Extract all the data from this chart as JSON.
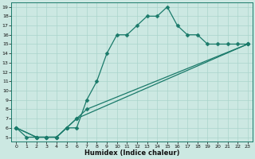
{
  "background_color": "#cce8e2",
  "grid_color": "#aad4cc",
  "line_color": "#1a7a6a",
  "xlim": [
    -0.5,
    23.5
  ],
  "ylim": [
    4.5,
    19.5
  ],
  "xticks": [
    0,
    1,
    2,
    3,
    4,
    5,
    6,
    7,
    8,
    9,
    10,
    11,
    12,
    13,
    14,
    15,
    16,
    17,
    18,
    19,
    20,
    21,
    22,
    23
  ],
  "yticks": [
    5,
    6,
    7,
    8,
    9,
    10,
    11,
    12,
    13,
    14,
    15,
    16,
    17,
    18,
    19
  ],
  "xlabel": "Humidex (Indice chaleur)",
  "series": [
    {
      "x": [
        0,
        1,
        2,
        3,
        4,
        5,
        6,
        7,
        8,
        9,
        10,
        11,
        12,
        13,
        14,
        15,
        16,
        17,
        18,
        19,
        20,
        21,
        22,
        23
      ],
      "y": [
        6,
        5,
        5,
        5,
        5,
        6,
        6,
        9,
        11,
        14,
        16,
        16,
        17,
        18,
        18,
        19,
        17,
        16,
        16,
        15,
        15,
        15,
        15,
        15
      ]
    },
    {
      "x": [
        0,
        2,
        3,
        4,
        5,
        6,
        7,
        23
      ],
      "y": [
        6,
        5,
        5,
        5,
        6,
        7,
        8,
        15
      ]
    },
    {
      "x": [
        0,
        2,
        3,
        4,
        5,
        6,
        23
      ],
      "y": [
        6,
        5,
        5,
        5,
        6,
        7,
        15
      ]
    }
  ]
}
